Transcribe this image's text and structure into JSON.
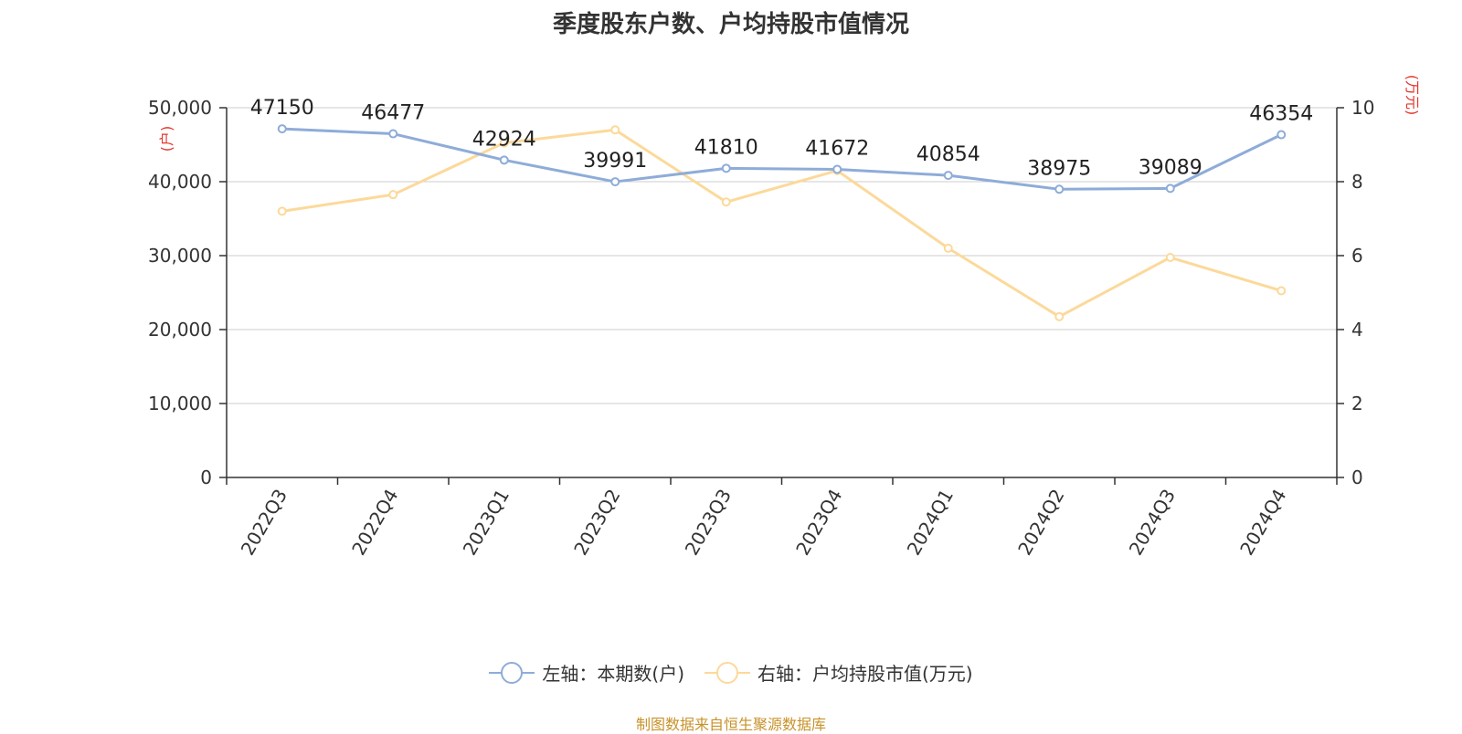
{
  "chart_data": {
    "type": "line",
    "title": "季度股东户数、户均持股市值情况",
    "categories": [
      "2022Q3",
      "2022Q4",
      "2023Q1",
      "2023Q2",
      "2023Q3",
      "2023Q4",
      "2024Q1",
      "2024Q2",
      "2024Q3",
      "2024Q4"
    ],
    "left_axis": {
      "unit_label": "(户)",
      "range": [
        0,
        50000
      ],
      "ticks": [
        "0",
        "10,000",
        "20,000",
        "30,000",
        "40,000",
        "50,000"
      ]
    },
    "right_axis": {
      "unit_label": "(万元)",
      "range": [
        0,
        10
      ],
      "ticks": [
        "0",
        "2",
        "4",
        "6",
        "8",
        "10"
      ]
    },
    "grid": true,
    "legend_position": "bottom",
    "series": [
      {
        "name": "左轴：本期数(户)",
        "axis": "left",
        "color": "#8eacd8",
        "values": [
          47150,
          46477,
          42924,
          39991,
          41810,
          41672,
          40854,
          38975,
          39089,
          46354
        ],
        "labels": [
          "47150",
          "46477",
          "42924",
          "39991",
          "41810",
          "41672",
          "40854",
          "38975",
          "39089",
          "46354"
        ]
      },
      {
        "name": "右轴：户均持股市值(万元)",
        "axis": "right",
        "color": "#fcd99a",
        "values": [
          7.2,
          7.65,
          9.05,
          9.4,
          7.45,
          8.3,
          6.2,
          4.35,
          5.95,
          5.05
        ]
      }
    ]
  },
  "source_note": "制图数据来自恒生聚源数据库",
  "colors": {
    "axis_unit": "#e4352b",
    "source_note": "#c8922a",
    "grid": "#cccccc",
    "axis_line": "#333333"
  }
}
